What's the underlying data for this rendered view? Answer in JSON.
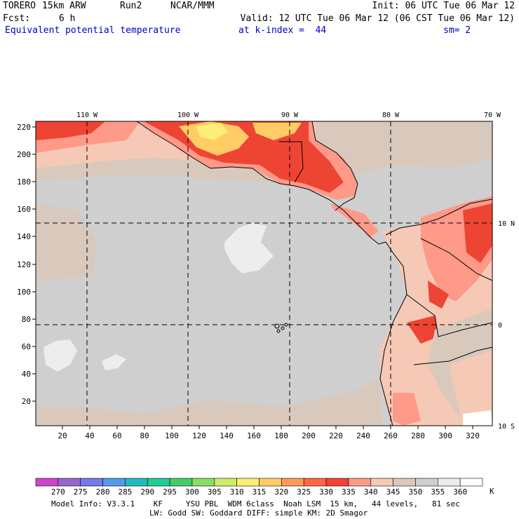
{
  "header": {
    "model": "TORERO",
    "resolution": "15km ARW",
    "run": "Run2",
    "center": "NCAR/MMM",
    "init": "Init: 06 UTC Tue 06 Mar 12",
    "fcst_label": "Fcst:",
    "fcst_value": "6 h",
    "valid": "Valid: 12 UTC Tue 06 Mar 12 (06 CST Tue 06 Mar 12)",
    "field": "Equivalent potential temperature",
    "level": "at k-index =  44",
    "smooth": "sm= 2"
  },
  "map": {
    "top_lon_labels": [
      "110 W",
      "100 W",
      "90 W",
      "80 W",
      "70 W"
    ],
    "right_lat_labels": [
      "10 N",
      "0",
      "10 S"
    ],
    "y_grid_labels": [
      "220",
      "200",
      "180",
      "160",
      "140",
      "120",
      "100",
      "80",
      "60",
      "40",
      "20"
    ],
    "x_grid_labels": [
      "20",
      "40",
      "60",
      "80",
      "100",
      "120",
      "140",
      "160",
      "180",
      "200",
      "220",
      "240",
      "260",
      "280",
      "300",
      "320"
    ]
  },
  "colorbar": {
    "unit": "K",
    "labels": [
      "270",
      "275",
      "280",
      "285",
      "290",
      "295",
      "300",
      "305",
      "310",
      "315",
      "320",
      "325",
      "330",
      "335",
      "340",
      "345",
      "350",
      "355",
      "360"
    ],
    "colors": [
      "#cc44cc",
      "#9966cc",
      "#7777ee",
      "#5599ee",
      "#22bbbb",
      "#22cc99",
      "#44cc66",
      "#88dd66",
      "#ccee66",
      "#ffee77",
      "#ffcc66",
      "#ff9955",
      "#ff6644",
      "#ee4433",
      "#ff9988",
      "#f5c9b5",
      "#d9c9bc",
      "#cfcfcf",
      "#ededed",
      "#ffffff"
    ]
  },
  "footer": {
    "line1": "Model Info: V3.3.1    KF     YSU PBL  WDM 6class  Noah LSM  15 km,   44 levels,   81 sec",
    "line2": "LW: Godd SW: Goddard DIFF: simple KM: 2D Smagor"
  }
}
